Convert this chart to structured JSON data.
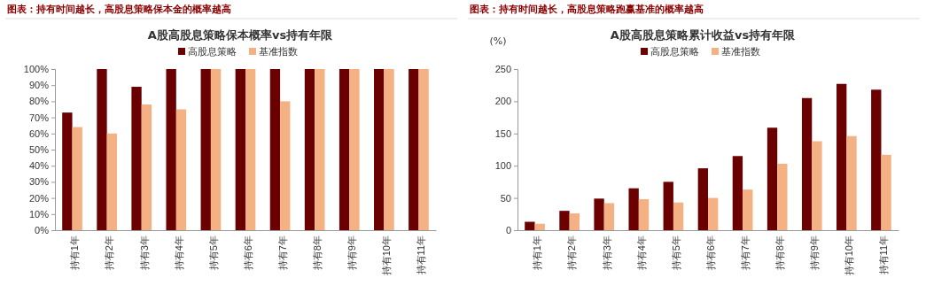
{
  "chart_data": [
    {
      "type": "bar",
      "title": "图表：持有时间越长，高股息策略保本金的概率越高",
      "subtitle": "A股高股息策略保本概率vs持有年限",
      "categories": [
        "持有1年",
        "持有2年",
        "持有3年",
        "持有4年",
        "持有5年",
        "持有6年",
        "持有7年",
        "持有8年",
        "持有9年",
        "持有10年",
        "持有11年"
      ],
      "series": [
        {
          "name": "高股息策略",
          "color": "#6b0000",
          "values": [
            73,
            100,
            89,
            100,
            100,
            100,
            100,
            100,
            100,
            100,
            100
          ]
        },
        {
          "name": "基准指数",
          "color": "#f4b183",
          "values": [
            64,
            60,
            78,
            75,
            100,
            100,
            80,
            100,
            100,
            100,
            100
          ]
        }
      ],
      "ylim": [
        0,
        100
      ],
      "yticks": [
        {
          "value": 0,
          "label": "0%"
        },
        {
          "value": 10,
          "label": "10%"
        },
        {
          "value": 20,
          "label": "20%"
        },
        {
          "value": 30,
          "label": "30%"
        },
        {
          "value": 40,
          "label": "40%"
        },
        {
          "value": 50,
          "label": "50%"
        },
        {
          "value": 60,
          "label": "60%"
        },
        {
          "value": 70,
          "label": "70%"
        },
        {
          "value": 80,
          "label": "80%"
        },
        {
          "value": 90,
          "label": "90%"
        },
        {
          "value": 100,
          "label": "100%"
        }
      ],
      "legend": "top"
    },
    {
      "type": "bar",
      "title": "图表：持有时间越长，高股息策略跑赢基准的概率越高",
      "subtitle": "A股高股息策略累计收益vs持有年限",
      "ylabel": "(%)",
      "categories": [
        "持有1年",
        "持有2年",
        "持有3年",
        "持有4年",
        "持有5年",
        "持有6年",
        "持有7年",
        "持有8年",
        "持有9年",
        "持有10年",
        "持有11年"
      ],
      "series": [
        {
          "name": "高股息策略",
          "color": "#6b0000",
          "values": [
            13,
            30,
            49,
            65,
            75,
            96,
            115,
            159,
            205,
            227,
            218
          ]
        },
        {
          "name": "基准指数",
          "color": "#f4b183",
          "values": [
            10,
            26,
            42,
            48,
            43,
            50,
            63,
            103,
            138,
            146,
            117
          ]
        }
      ],
      "ylim": [
        0,
        250
      ],
      "yticks": [
        0,
        50,
        100,
        150,
        200,
        250
      ],
      "legend": "top"
    }
  ]
}
